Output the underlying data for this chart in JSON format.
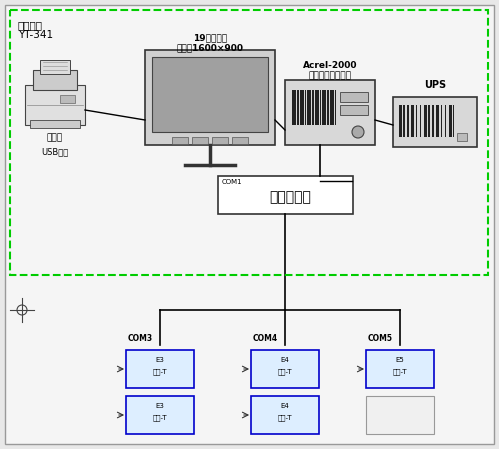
{
  "bg_color": "#e8e8e8",
  "title_line1": "监控中心",
  "title_line2": "YT-341",
  "printer_label": "打印机",
  "printer_sublabel": "USB连接",
  "monitor_label1": "19寸显示器",
  "monitor_label2": "分辨率1600×900",
  "server_label1": "Acrel-2000",
  "server_label2": "电力监控系统主机",
  "ups_label": "UPS",
  "serial_card_label": "工业串口卡",
  "serial_card_sublabel": "COM1",
  "branch_labels": [
    "COM3",
    "COM4",
    "COM5"
  ],
  "device_box_label_top1": "E3",
  "device_box_label_bot1": "能量-T",
  "device_box_label_top2": "E4",
  "device_box_label_bot2": "能量-T",
  "device_box_label_top3": "E5",
  "device_box_label_bot3": "能量-T",
  "text_color": "#000000",
  "line_color": "#000000",
  "box_border_blue": "#0000cc",
  "main_bg": "#ffffff",
  "outer_border": "#999999",
  "green_dash": "#00cc00"
}
